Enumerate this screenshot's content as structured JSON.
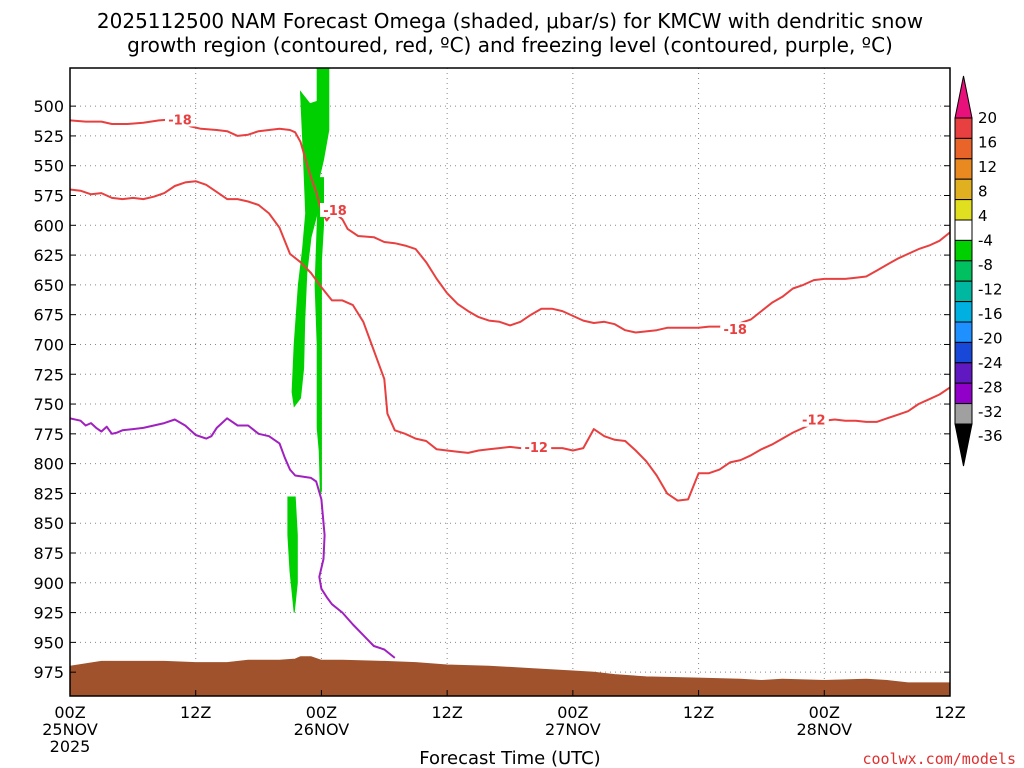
{
  "chart_data": {
    "type": "area",
    "title_line1": "2025112500 NAM Forecast Omega (shaded, μbar/s) for KMCW with dendritic snow",
    "title_line2": "growth region (contoured, red, ºC) and freezing level (contoured, purple, ºC)",
    "xlabel": "Forecast Time (UTC)",
    "ylabel": "",
    "x_axis": {
      "range_hours": [
        0,
        84
      ],
      "ticks": [
        {
          "hour": 0,
          "label1": "00Z",
          "label2": "25NOV",
          "label3": "2025"
        },
        {
          "hour": 12,
          "label1": "12Z",
          "label2": "",
          "label3": ""
        },
        {
          "hour": 24,
          "label1": "00Z",
          "label2": "26NOV",
          "label3": ""
        },
        {
          "hour": 36,
          "label1": "12Z",
          "label2": "",
          "label3": ""
        },
        {
          "hour": 48,
          "label1": "00Z",
          "label2": "27NOV",
          "label3": ""
        },
        {
          "hour": 60,
          "label1": "12Z",
          "label2": "",
          "label3": ""
        },
        {
          "hour": 72,
          "label1": "00Z",
          "label2": "28NOV",
          "label3": ""
        },
        {
          "hour": 84,
          "label1": "12Z",
          "label2": "",
          "label3": ""
        }
      ]
    },
    "y_axis": {
      "unit": "hPa",
      "range": [
        468,
        995
      ],
      "inverted": true,
      "ticks": [
        500,
        525,
        550,
        575,
        600,
        625,
        650,
        675,
        700,
        725,
        750,
        775,
        800,
        825,
        850,
        875,
        900,
        925,
        950,
        975
      ]
    },
    "grid": true,
    "contours": [
      {
        "name": "-18",
        "color": "#e84040",
        "label_positions": [
          {
            "x": 10.5,
            "y": 512
          },
          {
            "x": 25.3,
            "y": 588
          },
          {
            "x": 63.5,
            "y": 688
          }
        ],
        "points": [
          [
            0,
            512
          ],
          [
            1.5,
            513
          ],
          [
            3,
            513
          ],
          [
            4,
            515
          ],
          [
            5.5,
            515
          ],
          [
            7,
            514
          ],
          [
            8.5,
            512
          ],
          [
            10,
            511
          ],
          [
            11.5,
            517
          ],
          [
            12.5,
            519
          ],
          [
            14,
            520
          ],
          [
            15,
            521
          ],
          [
            16,
            525
          ],
          [
            17,
            524
          ],
          [
            18,
            521
          ],
          [
            19,
            520
          ],
          [
            20,
            519
          ],
          [
            21,
            520
          ],
          [
            21.5,
            522
          ],
          [
            22,
            530
          ],
          [
            22.5,
            545
          ],
          [
            23,
            560
          ],
          [
            23.5,
            572
          ],
          [
            24,
            588
          ],
          [
            24.5,
            596
          ],
          [
            25,
            590
          ],
          [
            25.3,
            588
          ],
          [
            25.6,
            592
          ],
          [
            26,
            595
          ],
          [
            26.5,
            603
          ],
          [
            27.5,
            609
          ],
          [
            29,
            610
          ],
          [
            30,
            614
          ],
          [
            31,
            615
          ],
          [
            32,
            617
          ],
          [
            33,
            620
          ],
          [
            34,
            631
          ],
          [
            35,
            645
          ],
          [
            36,
            657
          ],
          [
            37,
            666
          ],
          [
            38,
            672
          ],
          [
            39,
            677
          ],
          [
            40,
            680
          ],
          [
            41,
            681
          ],
          [
            42,
            684
          ],
          [
            43,
            681
          ],
          [
            44,
            675
          ],
          [
            45,
            670
          ],
          [
            46,
            670
          ],
          [
            47,
            672
          ],
          [
            48,
            676
          ],
          [
            49,
            680
          ],
          [
            50,
            682
          ],
          [
            51,
            681
          ],
          [
            52,
            683
          ],
          [
            53,
            688
          ],
          [
            54,
            690
          ],
          [
            55,
            689
          ],
          [
            56,
            688
          ],
          [
            57,
            686
          ],
          [
            58,
            686
          ],
          [
            59,
            686
          ],
          [
            60,
            686
          ],
          [
            61,
            685
          ],
          [
            62,
            685
          ],
          [
            63,
            684
          ],
          [
            64,
            682
          ],
          [
            65,
            679
          ],
          [
            66,
            672
          ],
          [
            67,
            665
          ],
          [
            68,
            660
          ],
          [
            69,
            653
          ],
          [
            70,
            650
          ],
          [
            71,
            646
          ],
          [
            72,
            645
          ],
          [
            73,
            645
          ],
          [
            74,
            645
          ],
          [
            75,
            644
          ],
          [
            76,
            643
          ],
          [
            77,
            638
          ],
          [
            78,
            633
          ],
          [
            79,
            628
          ],
          [
            80,
            624
          ],
          [
            81,
            620
          ],
          [
            82,
            617
          ],
          [
            83,
            613
          ],
          [
            84,
            606
          ]
        ]
      },
      {
        "name": "-12",
        "color": "#e84040",
        "label_positions": [
          {
            "x": 44.5,
            "y": 787
          },
          {
            "x": 71.0,
            "y": 764
          }
        ],
        "points": [
          [
            0,
            570
          ],
          [
            1,
            571
          ],
          [
            2,
            574
          ],
          [
            3,
            573
          ],
          [
            4,
            577
          ],
          [
            5,
            578
          ],
          [
            6,
            577
          ],
          [
            7,
            578
          ],
          [
            8,
            576
          ],
          [
            9,
            573
          ],
          [
            10,
            567
          ],
          [
            11,
            564
          ],
          [
            12,
            563
          ],
          [
            13,
            566
          ],
          [
            14,
            572
          ],
          [
            15,
            578
          ],
          [
            16,
            578
          ],
          [
            17,
            580
          ],
          [
            18,
            583
          ],
          [
            19,
            590
          ],
          [
            20,
            602
          ],
          [
            21,
            624
          ],
          [
            22,
            631
          ],
          [
            23,
            640
          ],
          [
            24,
            652
          ],
          [
            25,
            663
          ],
          [
            26,
            663
          ],
          [
            27,
            667
          ],
          [
            28,
            681
          ],
          [
            29,
            705
          ],
          [
            30,
            729
          ],
          [
            30.3,
            758
          ],
          [
            31,
            772
          ],
          [
            32,
            775
          ],
          [
            33,
            779
          ],
          [
            34,
            781
          ],
          [
            35,
            788
          ],
          [
            36,
            789
          ],
          [
            37,
            790
          ],
          [
            38,
            791
          ],
          [
            39,
            789
          ],
          [
            40,
            788
          ],
          [
            41,
            787
          ],
          [
            42,
            786
          ],
          [
            43,
            787
          ],
          [
            44,
            787
          ],
          [
            45,
            787
          ],
          [
            46,
            787
          ],
          [
            47,
            787
          ],
          [
            48,
            789
          ],
          [
            49,
            787
          ],
          [
            50,
            771
          ],
          [
            51,
            777
          ],
          [
            52,
            780
          ],
          [
            53,
            781
          ],
          [
            54,
            789
          ],
          [
            55,
            798
          ],
          [
            56,
            810
          ],
          [
            57,
            825
          ],
          [
            58,
            831
          ],
          [
            59,
            830
          ],
          [
            60,
            808
          ],
          [
            61,
            808
          ],
          [
            62,
            805
          ],
          [
            63,
            799
          ],
          [
            64,
            797
          ],
          [
            65,
            793
          ],
          [
            66,
            788
          ],
          [
            67,
            784
          ],
          [
            68,
            779
          ],
          [
            69,
            774
          ],
          [
            70,
            770
          ],
          [
            71,
            766
          ],
          [
            72,
            764
          ],
          [
            73,
            763
          ],
          [
            74,
            764
          ],
          [
            75,
            764
          ],
          [
            76,
            765
          ],
          [
            77,
            765
          ],
          [
            78,
            762
          ],
          [
            79,
            759
          ],
          [
            80,
            756
          ],
          [
            81,
            750
          ],
          [
            82,
            746
          ],
          [
            83,
            742
          ],
          [
            84,
            736
          ]
        ]
      },
      {
        "name": "0",
        "color": "#a020c0",
        "label_positions": [],
        "points": [
          [
            0,
            762
          ],
          [
            1,
            764
          ],
          [
            1.5,
            768
          ],
          [
            2,
            766
          ],
          [
            2.5,
            770
          ],
          [
            3,
            773
          ],
          [
            3.5,
            769
          ],
          [
            4,
            775
          ],
          [
            4.5,
            774
          ],
          [
            5,
            772
          ],
          [
            6,
            771
          ],
          [
            7,
            770
          ],
          [
            8,
            768
          ],
          [
            9,
            766
          ],
          [
            10,
            763
          ],
          [
            11,
            768
          ],
          [
            12,
            776
          ],
          [
            13,
            779
          ],
          [
            13.5,
            777
          ],
          [
            14,
            770
          ],
          [
            14.5,
            766
          ],
          [
            15,
            762
          ],
          [
            16,
            768
          ],
          [
            17,
            768
          ],
          [
            18,
            775
          ],
          [
            19,
            777
          ],
          [
            20,
            783
          ],
          [
            20.5,
            795
          ],
          [
            21,
            805
          ],
          [
            21.5,
            810
          ],
          [
            23,
            812
          ],
          [
            23.5,
            815
          ],
          [
            24,
            830
          ],
          [
            24.3,
            860
          ],
          [
            24.2,
            880
          ],
          [
            23.8,
            895
          ],
          [
            24,
            905
          ],
          [
            24.5,
            912
          ],
          [
            25,
            918
          ],
          [
            26,
            925
          ],
          [
            27,
            935
          ],
          [
            28,
            944
          ],
          [
            29,
            953
          ],
          [
            30,
            956
          ],
          [
            31,
            963
          ]
        ]
      }
    ],
    "omega_regions": [
      {
        "color": "#00d000",
        "label": "-8 to -4",
        "points": [
          [
            22,
            488
          ],
          [
            22.3,
            545
          ],
          [
            22.5,
            590
          ],
          [
            22.2,
            620
          ],
          [
            21.8,
            650
          ],
          [
            21.4,
            700
          ],
          [
            21.2,
            740
          ],
          [
            21.4,
            752
          ],
          [
            22,
            745
          ],
          [
            22.3,
            720
          ],
          [
            22.4,
            680
          ],
          [
            22.6,
            640
          ],
          [
            23,
            610
          ],
          [
            23.6,
            590
          ],
          [
            23.8,
            560
          ],
          [
            24.2,
            545
          ],
          [
            24.7,
            520
          ],
          [
            24.7,
            450
          ],
          [
            23.6,
            450
          ],
          [
            23.6,
            496
          ],
          [
            22.9,
            498
          ]
        ]
      },
      {
        "color": "#00d000",
        "label": "-8 to -4",
        "points": [
          [
            23.8,
            560
          ],
          [
            23.6,
            600
          ],
          [
            23.4,
            650
          ],
          [
            23.6,
            700
          ],
          [
            23.6,
            770
          ],
          [
            23.8,
            790
          ],
          [
            23.9,
            825
          ],
          [
            24.0,
            823
          ],
          [
            24.0,
            700
          ],
          [
            24.0,
            630
          ],
          [
            24.2,
            600
          ],
          [
            24.2,
            560
          ]
        ]
      },
      {
        "color": "#00d000",
        "label": "-8 to -4",
        "points": [
          [
            20.8,
            828
          ],
          [
            20.8,
            860
          ],
          [
            21.0,
            890
          ],
          [
            21.4,
            925
          ],
          [
            21.7,
            900
          ],
          [
            21.7,
            860
          ],
          [
            21.5,
            828
          ]
        ]
      }
    ],
    "terrain": {
      "color": "#a0522d",
      "points": [
        [
          0,
          970
        ],
        [
          3,
          966
        ],
        [
          6,
          966
        ],
        [
          9,
          966
        ],
        [
          12,
          967
        ],
        [
          15,
          967
        ],
        [
          17,
          965
        ],
        [
          20,
          965
        ],
        [
          21.5,
          964
        ],
        [
          22,
          962
        ],
        [
          23,
          962
        ],
        [
          24,
          965
        ],
        [
          26,
          965
        ],
        [
          30,
          966
        ],
        [
          33,
          967
        ],
        [
          36,
          969
        ],
        [
          40,
          970
        ],
        [
          44,
          972
        ],
        [
          48,
          974
        ],
        [
          50,
          975
        ],
        [
          52,
          977
        ],
        [
          55,
          979
        ],
        [
          60,
          980
        ],
        [
          64,
          981
        ],
        [
          66,
          982
        ],
        [
          68,
          981
        ],
        [
          72,
          982
        ],
        [
          76,
          981
        ],
        [
          78,
          982
        ],
        [
          80,
          984
        ],
        [
          84,
          984
        ]
      ]
    },
    "colorbar": {
      "ticks": [
        "20",
        "16",
        "12",
        "8",
        "4",
        "-4",
        "-8",
        "-12",
        "-16",
        "-20",
        "-24",
        "-28",
        "-32",
        "-36"
      ],
      "colors_top_to_bottom": [
        "#e8107a",
        "#e84040",
        "#e86428",
        "#e88a20",
        "#e0b020",
        "#e0e020",
        "#ffffff",
        "#00d000",
        "#00c060",
        "#00b8a0",
        "#00b0e0",
        "#1e90ff",
        "#1848d8",
        "#6018c0",
        "#9000c8",
        "#a0a0a0",
        "#000000"
      ]
    },
    "watermark": "coolwx.com/models"
  }
}
